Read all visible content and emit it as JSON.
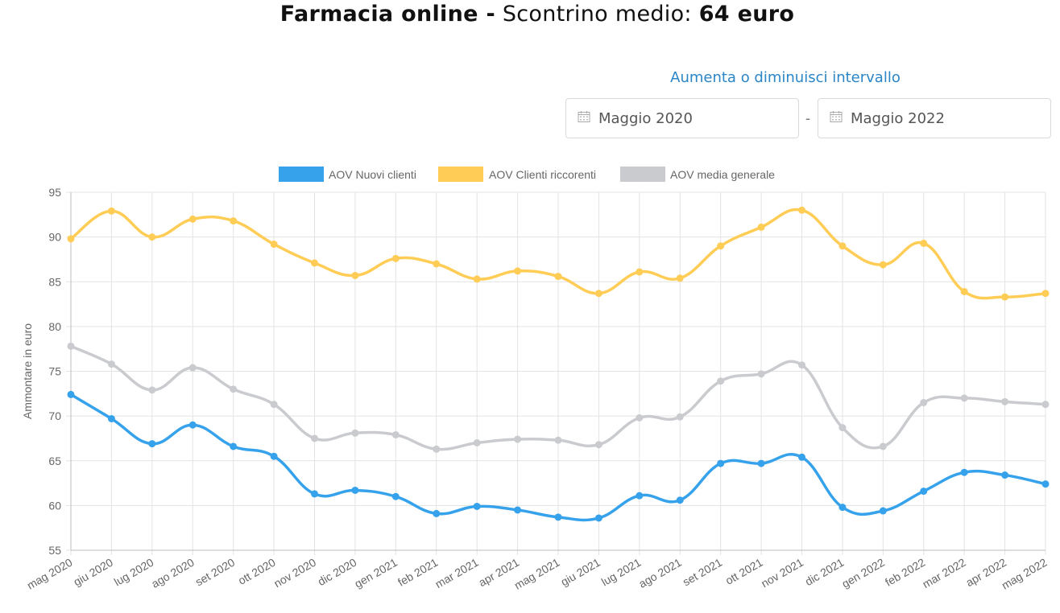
{
  "title": {
    "bold1": "Farmacia online -",
    "normal": " Scontrino medio: ",
    "bold2": "64 euro"
  },
  "range": {
    "label": "Aumenta o diminuisci intervallo",
    "start": "Maggio 2020",
    "separator": "-",
    "end": "Maggio 2022",
    "icon": "calendar-icon"
  },
  "chart_data": {
    "type": "line",
    "ylabel": "Ammontare in euro",
    "ylim": [
      55,
      95
    ],
    "yticks": [
      55,
      60,
      65,
      70,
      75,
      80,
      85,
      90,
      95
    ],
    "grid": true,
    "legend_position": "top",
    "categories": [
      "mag 2020",
      "giu 2020",
      "lug 2020",
      "ago 2020",
      "set 2020",
      "ott 2020",
      "nov 2020",
      "dic 2020",
      "gen 2021",
      "feb 2021",
      "mar 2021",
      "apr 2021",
      "mag 2021",
      "giu 2021",
      "lug 2021",
      "ago 2021",
      "set 2021",
      "ott 2021",
      "nov 2021",
      "dic 2021",
      "gen 2022",
      "feb 2022",
      "mar 2022",
      "apr 2022",
      "mag 2022"
    ],
    "series": [
      {
        "name": "AOV Nuovi clienti",
        "color": "#36a2eb",
        "values": [
          72.4,
          69.7,
          66.9,
          69.0,
          66.6,
          65.5,
          61.3,
          61.7,
          61.0,
          59.1,
          59.9,
          59.5,
          58.7,
          58.6,
          61.1,
          60.6,
          64.7,
          64.7,
          65.4,
          59.8,
          59.4,
          61.6,
          63.7,
          63.4,
          62.4
        ]
      },
      {
        "name": "AOV Clienti riccorenti",
        "color": "#ffcd56",
        "values": [
          89.8,
          92.9,
          90.0,
          92.0,
          91.8,
          89.2,
          87.1,
          85.7,
          87.6,
          87.0,
          85.3,
          86.2,
          85.6,
          83.7,
          86.1,
          85.4,
          89.0,
          91.1,
          93.0,
          89.0,
          86.9,
          89.3,
          83.9,
          83.3,
          83.7
        ]
      },
      {
        "name": "AOV media generale",
        "color": "#c9cbcf",
        "values": [
          77.8,
          75.8,
          72.9,
          75.4,
          73.0,
          71.3,
          67.5,
          68.1,
          67.9,
          66.3,
          67.0,
          67.4,
          67.3,
          66.8,
          69.8,
          69.9,
          73.9,
          74.7,
          75.7,
          68.7,
          66.6,
          71.5,
          72.0,
          71.6,
          71.3
        ]
      }
    ]
  }
}
